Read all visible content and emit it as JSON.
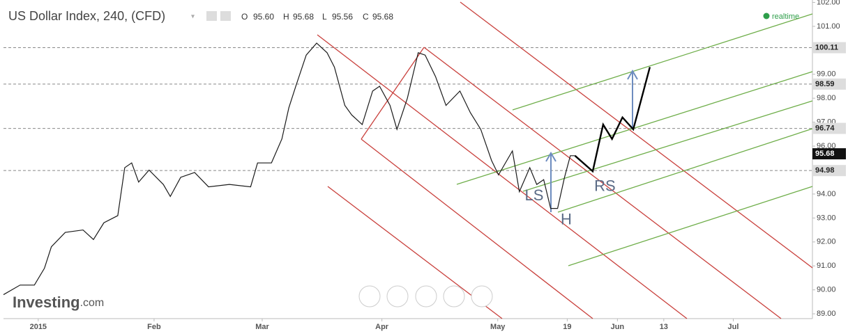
{
  "chart_data": {
    "type": "line",
    "title": "US Dollar Index, 240, (CFD)",
    "ohlc": {
      "o_label": "O",
      "open": "95.60",
      "h_label": "H",
      "high": "95.68",
      "l_label": "L",
      "low": "95.56",
      "c_label": "C",
      "close": "95.68"
    },
    "status": "realtime",
    "brand": "Investing",
    "brand_suffix": ".com",
    "xlim": [
      -8,
      201.5
    ],
    "ylim": [
      88.8,
      102.1
    ],
    "xticks": [
      {
        "value": 1,
        "label": "2015"
      },
      {
        "value": 31,
        "label": "Feb"
      },
      {
        "value": 59,
        "label": "Mar"
      },
      {
        "value": 90,
        "label": "Apr"
      },
      {
        "value": 120,
        "label": "May"
      },
      {
        "value": 138,
        "label": "19"
      },
      {
        "value": 151,
        "label": "Jun"
      },
      {
        "value": 163,
        "label": "13"
      },
      {
        "value": 181,
        "label": "Jul"
      }
    ],
    "yticks": [
      {
        "value": 89,
        "label": "89.00"
      },
      {
        "value": 90,
        "label": "90.00"
      },
      {
        "value": 91,
        "label": "91.00"
      },
      {
        "value": 92,
        "label": "92.00"
      },
      {
        "value": 93,
        "label": "93.00"
      },
      {
        "value": 94,
        "label": "94.00"
      },
      {
        "value": 95,
        "label": "95.00"
      },
      {
        "value": 96,
        "label": "96.00"
      },
      {
        "value": 97,
        "label": "97.00"
      },
      {
        "value": 98,
        "label": "98.00"
      },
      {
        "value": 99,
        "label": "99.00"
      },
      {
        "value": 100,
        "label": "100.00"
      },
      {
        "value": 101,
        "label": "101.00"
      },
      {
        "value": 102,
        "label": "102.00"
      }
    ],
    "levels": [
      100.11,
      98.59,
      96.74,
      94.98
    ],
    "last_price": 95.68,
    "series": [
      {
        "color": "#1a1a1a",
        "x": [
          -8,
          -3.7,
          0,
          2.6,
          4.4,
          8.0,
          12.6,
          15.3,
          18.0,
          21.6,
          23.4,
          25.2,
          27.0,
          29.7,
          33.4,
          35.2,
          37.9,
          41.5,
          45.1,
          50.5,
          56.0,
          57.8,
          61.4,
          64.1,
          65.9,
          67.7,
          70.4,
          73.1,
          75.8,
          77.7,
          80.4,
          82.2,
          84.9,
          87.6,
          89.4,
          92.1,
          93.9,
          96.6,
          99.4,
          101.2,
          103.9,
          106.6,
          110.2,
          112.9,
          115.6,
          118.4,
          120.2,
          123.8,
          125.6,
          128.3,
          130.1,
          131.9,
          133.7,
          135.5,
          137.3,
          138.8,
          140.0
        ],
        "values": [
          89.8,
          90.2,
          90.2,
          90.9,
          91.8,
          92.4,
          92.5,
          92.1,
          92.8,
          93.1,
          95.1,
          95.3,
          94.5,
          95.0,
          94.4,
          93.9,
          94.7,
          94.9,
          94.3,
          94.4,
          94.3,
          95.3,
          95.3,
          96.3,
          97.6,
          98.5,
          99.8,
          100.3,
          99.9,
          99.3,
          97.7,
          97.3,
          96.9,
          98.3,
          98.5,
          97.7,
          96.7,
          98.0,
          99.9,
          99.8,
          98.9,
          97.7,
          98.3,
          97.4,
          96.7,
          95.4,
          94.8,
          95.8,
          94.1,
          95.1,
          94.4,
          94.6,
          93.4,
          93.4,
          94.7,
          95.6,
          95.6
        ]
      },
      {
        "color": "#000000",
        "x": [
          140.0,
          144.6,
          147.3,
          149.6,
          152.3,
          155.1,
          159.4
        ],
        "values": [
          95.6,
          94.95,
          96.9,
          96.3,
          97.2,
          96.7,
          99.3
        ]
      }
    ],
    "annotations": [
      {
        "text": "LS",
        "x": 127,
        "y": 93.9
      },
      {
        "text": "H",
        "x": 136.3,
        "y": 92.9
      },
      {
        "text": "RS",
        "x": 145,
        "y": 94.3
      }
    ]
  }
}
